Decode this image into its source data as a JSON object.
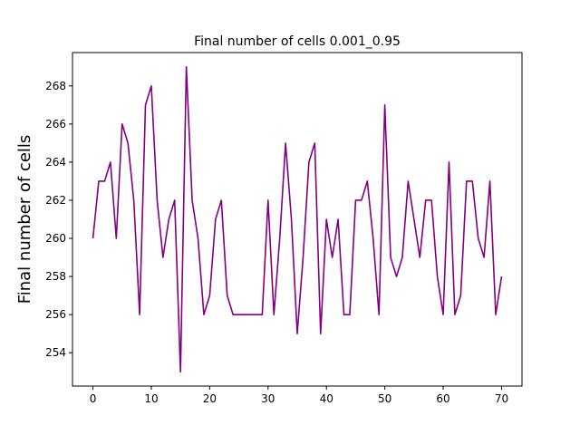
{
  "chart_data": {
    "type": "line",
    "title": "Final number of cells 0.001_0.95",
    "xlabel": "",
    "ylabel": "Final number of cells",
    "xlim": [
      -3.5,
      73.5
    ],
    "ylim": [
      252.25,
      269.75
    ],
    "xticks": [
      0,
      10,
      20,
      30,
      40,
      50,
      60,
      70
    ],
    "yticks": [
      254,
      256,
      258,
      260,
      262,
      264,
      266,
      268
    ],
    "grid": false,
    "legend": "none",
    "series": [
      {
        "color": "#800080",
        "x": [
          0,
          1,
          2,
          3,
          4,
          5,
          6,
          7,
          8,
          9,
          10,
          11,
          12,
          13,
          14,
          15,
          16,
          17,
          18,
          19,
          20,
          21,
          22,
          23,
          24,
          25,
          26,
          27,
          28,
          29,
          30,
          31,
          32,
          33,
          34,
          35,
          36,
          37,
          38,
          39,
          40,
          41,
          42,
          43,
          44,
          45,
          46,
          47,
          48,
          49,
          50,
          51,
          52,
          53,
          54,
          55,
          56,
          57,
          58,
          59,
          60,
          61,
          62,
          63,
          64,
          65,
          66,
          67,
          68,
          69,
          70
        ],
        "values": [
          260,
          263,
          263,
          264,
          260,
          266,
          265,
          262,
          256,
          267,
          268,
          262,
          259,
          261,
          262,
          253,
          269,
          262,
          260,
          256,
          257,
          261,
          262,
          257,
          256,
          256,
          256,
          256,
          256,
          256,
          262,
          256,
          260,
          265,
          261,
          255,
          259,
          264,
          265,
          255,
          261,
          259,
          261,
          256,
          256,
          262,
          262,
          263,
          260,
          256,
          267,
          259,
          258,
          259,
          263,
          261,
          259,
          262,
          262,
          258,
          256,
          264,
          256,
          257,
          263,
          263,
          260,
          259,
          263,
          256,
          258
        ]
      }
    ]
  }
}
